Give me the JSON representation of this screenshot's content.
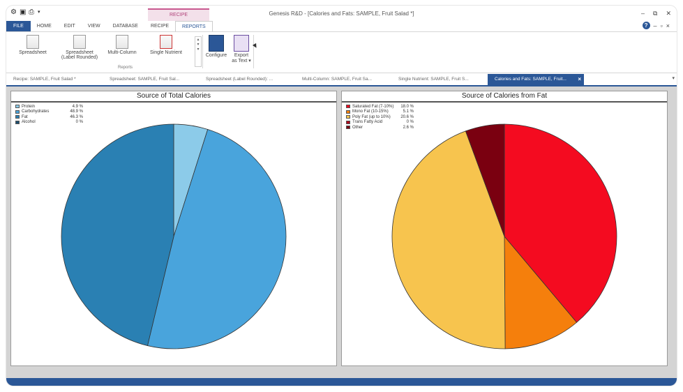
{
  "window": {
    "title": "Genesis R&D - [Calories and Fats: SAMPLE, Fruit Salad *]",
    "context_tab_group": "RECIPE",
    "controls": [
      "–",
      "⧉",
      "✕"
    ]
  },
  "ribbon_tabs": [
    "FILE",
    "HOME",
    "EDIT",
    "VIEW",
    "DATABASE",
    "RECIPE",
    "REPORTS"
  ],
  "ribbon": {
    "buttons": {
      "spreadsheet": "Spreadsheet",
      "spreadsheet_label_rounded_1": "Spreadsheet",
      "spreadsheet_label_rounded_2": "(Label Rounded)",
      "multi_column": "Multi-Column",
      "single_nutrient": "Single Nutrient",
      "configure": "Configure",
      "export_1": "Export",
      "export_2": "as Text ▾"
    },
    "group_label": "Reports"
  },
  "doc_tabs": [
    "Recipe: SAMPLE, Fruit Salad *",
    "Spreadsheet: SAMPLE, Fruit Sal...",
    "Spreadsheet (Label Rounded): ...",
    "Multi-Column: SAMPLE, Fruit Sa...",
    "Single Nutrient: SAMPLE, Fruit S...",
    "Calories and Fats: SAMPLE, Fruit..."
  ],
  "chart_data": [
    {
      "type": "pie",
      "title": "Source of Total Calories",
      "legend_position": "top-left",
      "slices": [
        {
          "label": "Protein",
          "value": 4.9,
          "display": "4.9 %",
          "color": "#8ccbe9"
        },
        {
          "label": "Carbohydrates",
          "value": 48.9,
          "display": "48.9 %",
          "color": "#49a4dc"
        },
        {
          "label": "Fat",
          "value": 46.3,
          "display": "46.3 %",
          "color": "#2a80b3"
        },
        {
          "label": "Alcohol",
          "value": 0,
          "display": "0 %",
          "color": "#1c4f70"
        }
      ]
    },
    {
      "type": "pie",
      "title": "Source of Calories from Fat",
      "legend_position": "top-left",
      "slices": [
        {
          "label": "Saturated Fat (7-10%)",
          "value": 18.0,
          "display": "18.0 %",
          "color": "#f40b20"
        },
        {
          "label": "Mono Fat (10-15%)",
          "value": 5.1,
          "display": "5.1 %",
          "color": "#f57f0c"
        },
        {
          "label": "Poly Fat (up to 10%)",
          "value": 20.6,
          "display": "20.6 %",
          "color": "#f7c44e"
        },
        {
          "label": "Trans Fatty Acid",
          "value": 0,
          "display": "0 %",
          "color": "#b0001a"
        },
        {
          "label": "Other",
          "value": 2.6,
          "display": "2.6 %",
          "color": "#7a0010"
        }
      ]
    }
  ]
}
